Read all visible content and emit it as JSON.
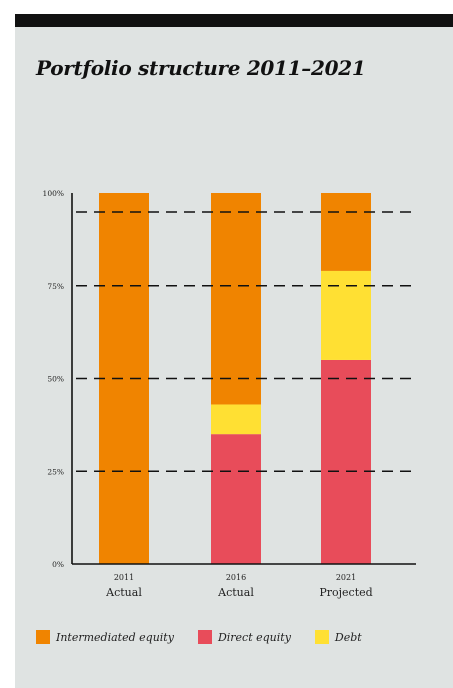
{
  "header_bar_color": "#111111",
  "background_color": "#dfe3e2",
  "chart_data": {
    "type": "bar",
    "stacked": true,
    "title": "Portfolio structure 2011–2021",
    "categories": [
      {
        "year": "2011",
        "label": "Actual"
      },
      {
        "year": "2016",
        "label": "Actual"
      },
      {
        "year": "2021",
        "label": "Projected"
      }
    ],
    "series": [
      {
        "name": "Direct equity",
        "color": "#e84c5a",
        "values": [
          0,
          35,
          55
        ]
      },
      {
        "name": "Debt",
        "color": "#ffe033",
        "values": [
          0,
          8,
          24
        ]
      },
      {
        "name": "Intermediated equity",
        "color": "#f08400",
        "values": [
          100,
          57,
          21
        ]
      }
    ],
    "legend_order": [
      "Intermediated equity",
      "Direct equity",
      "Debt"
    ],
    "y_ticks": [
      "0%",
      "25%",
      "50%",
      "75%",
      "100%"
    ],
    "ylim": [
      0,
      100
    ],
    "grid": "dashed",
    "legend_position": "bottom"
  }
}
